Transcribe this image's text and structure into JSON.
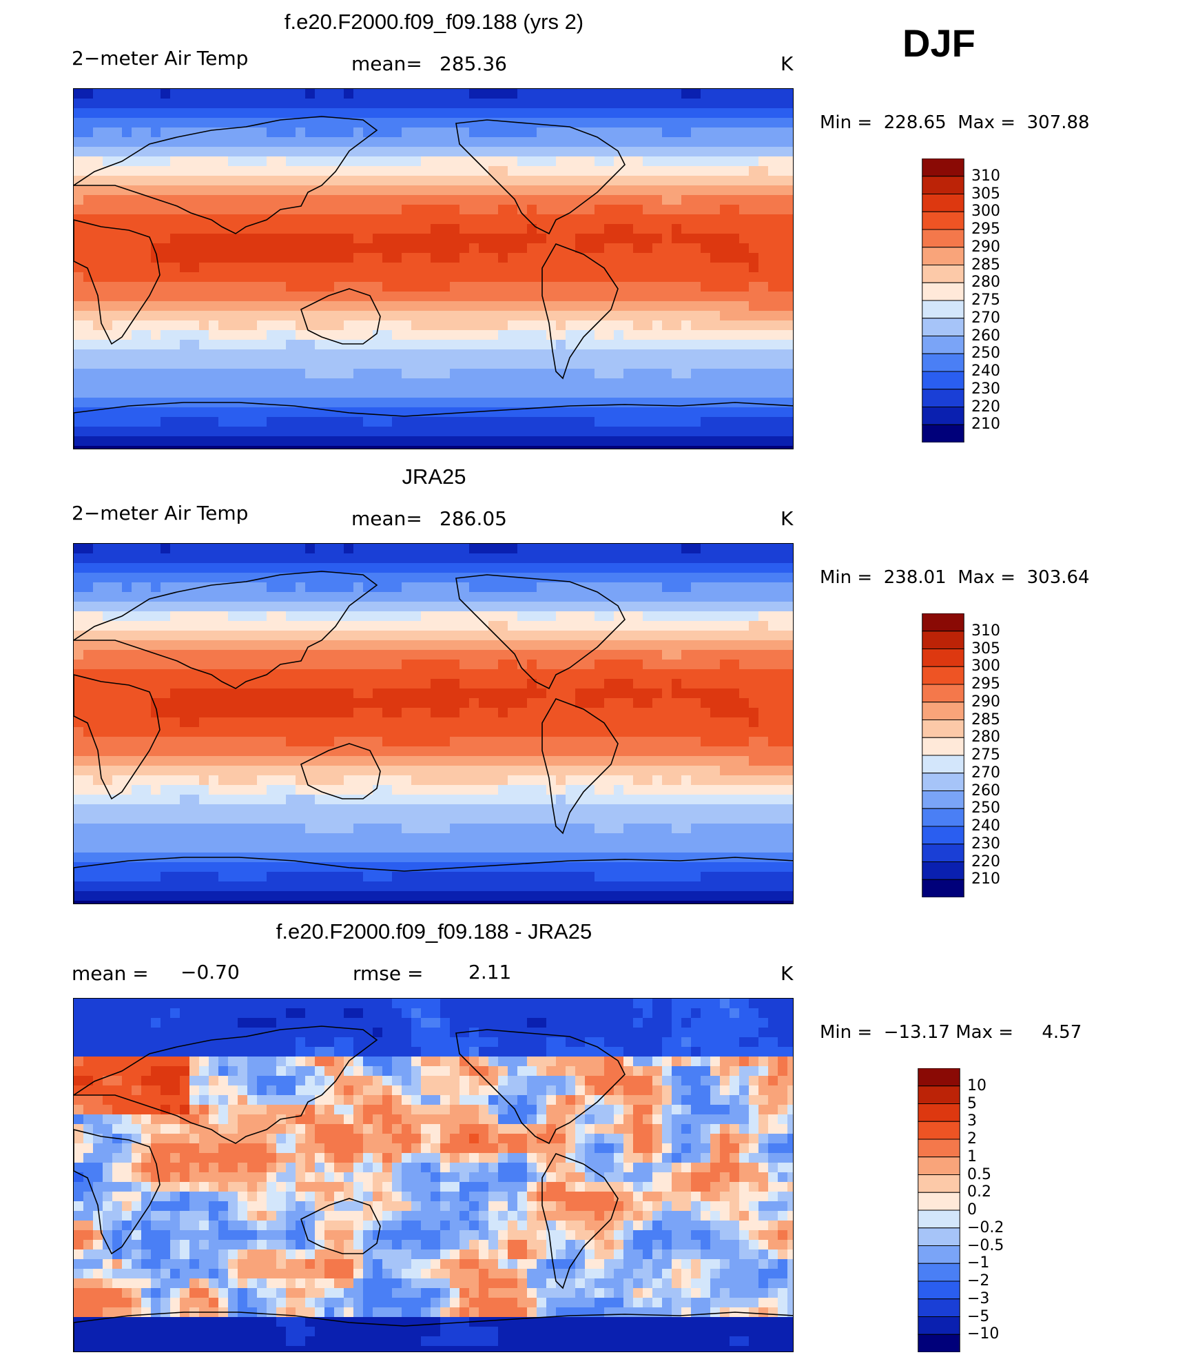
{
  "season": "DJF",
  "palettes": {
    "abs": [
      "#00007a",
      "#0a20b0",
      "#1a3fd6",
      "#2a5ef0",
      "#4a7ff5",
      "#7aa4f7",
      "#a6c4f8",
      "#d3e6fb",
      "#ffe9d9",
      "#fcc9a8",
      "#f9a47a",
      "#f4784b",
      "#ee5424",
      "#dd3810",
      "#bc2307",
      "#8a0a05"
    ],
    "diff": [
      "#00007a",
      "#0a20b0",
      "#1a3fd6",
      "#2a5ef0",
      "#4a7ff5",
      "#7aa4f7",
      "#a6c4f8",
      "#d3e6fb",
      "#ffe9d9",
      "#fcc9a8",
      "#f9a47a",
      "#f4784b",
      "#ee5424",
      "#dd3810",
      "#bc2307",
      "#8a0a05"
    ]
  },
  "chart_data": [
    {
      "type": "heatmap",
      "title": "f.e20.F2000.f09_f09.188 (yrs 2)",
      "left_label": "2−meter Air Temp",
      "mean_label": "mean=",
      "mean_value": "285.36",
      "units": "K",
      "min_label": "Min",
      "min_value": "228.65",
      "max_label": "Max",
      "max_value": "307.88",
      "colorbar_levels": [
        "310",
        "305",
        "300",
        "295",
        "290",
        "285",
        "280",
        "275",
        "270",
        "260",
        "250",
        "240",
        "230",
        "220",
        "210"
      ],
      "palette": "abs"
    },
    {
      "type": "heatmap",
      "title": "JRA25",
      "left_label": "2−meter Air Temp",
      "mean_label": "mean=",
      "mean_value": "286.05",
      "units": "K",
      "min_label": "Min",
      "min_value": "238.01",
      "max_label": "Max",
      "max_value": "303.64",
      "colorbar_levels": [
        "310",
        "305",
        "300",
        "295",
        "290",
        "285",
        "280",
        "275",
        "270",
        "260",
        "250",
        "240",
        "230",
        "220",
        "210"
      ],
      "palette": "abs"
    },
    {
      "type": "heatmap",
      "title": "f.e20.F2000.f09_f09.188 - JRA25",
      "left_label": "mean =",
      "left_value": "−0.70",
      "mean_label": "rmse =",
      "mean_value": "2.11",
      "units": "K",
      "min_label": "Min",
      "min_value": "−13.17",
      "max_label": "Max",
      "max_value": "4.57",
      "colorbar_levels": [
        "10",
        "5",
        "3",
        "2",
        "1",
        "0.5",
        "0.2",
        "0",
        "−0.2",
        "−0.5",
        "−1",
        "−2",
        "−3",
        "−5",
        "−10"
      ],
      "palette": "diff"
    }
  ]
}
